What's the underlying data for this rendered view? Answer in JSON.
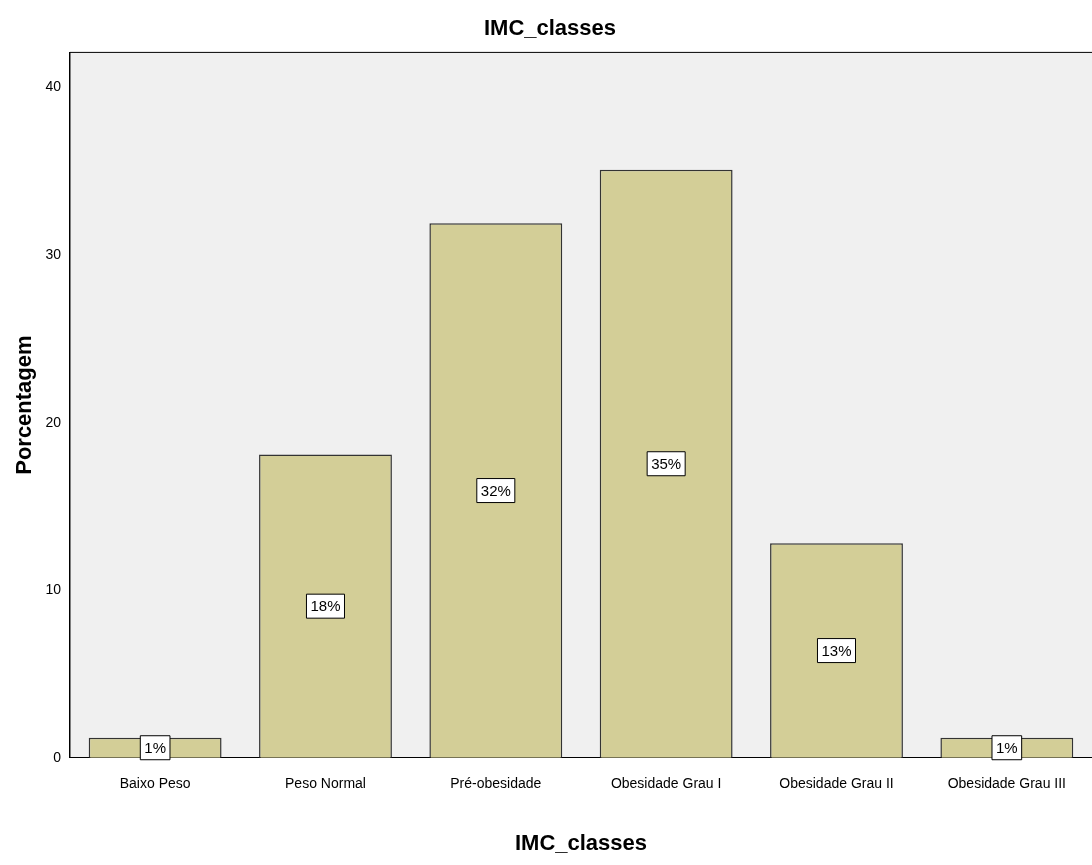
{
  "chart_data": {
    "type": "bar",
    "title": "IMC_classes",
    "xlabel": "IMC_classes",
    "ylabel": "Porcentagem",
    "categories": [
      "Baixo Peso",
      "Peso Normal",
      "Pré-obesidade",
      "Obesidade Grau I",
      "Obesidade Grau II",
      "Obesidade Grau III"
    ],
    "values": [
      1.2,
      18.1,
      31.9,
      35.1,
      12.8,
      1.2
    ],
    "value_labels": [
      "1%",
      "18%",
      "32%",
      "35%",
      "13%",
      "1%"
    ],
    "color": "#d3ce97",
    "ylim": [
      0,
      42.1
    ],
    "yticks": [
      0,
      10,
      20,
      30,
      40
    ],
    "grid": false,
    "legend": false
  }
}
